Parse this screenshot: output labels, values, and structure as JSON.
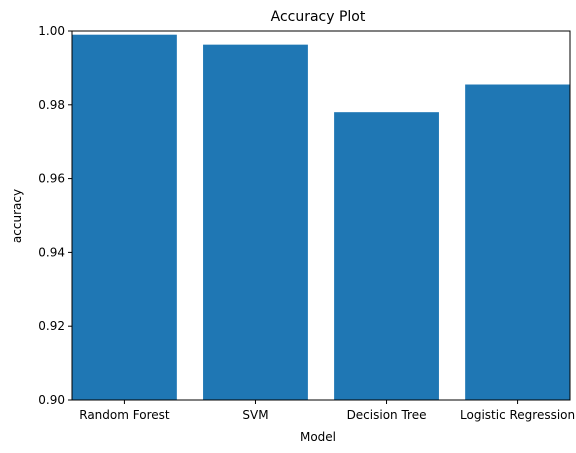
{
  "chart_data": {
    "type": "bar",
    "title": "Accuracy Plot",
    "xlabel": "Model",
    "ylabel": "accuracy",
    "categories": [
      "Random Forest",
      "SVM",
      "Decision Tree",
      "Logistic Regression"
    ],
    "values": [
      0.999,
      0.9963,
      0.978,
      0.9855
    ],
    "ylim": [
      0.9,
      1.0
    ],
    "yticks": [
      "0.90",
      "0.92",
      "0.94",
      "0.96",
      "0.98",
      "1.00"
    ],
    "bar_color": "#1f77b4",
    "grid": false,
    "legend": false
  }
}
